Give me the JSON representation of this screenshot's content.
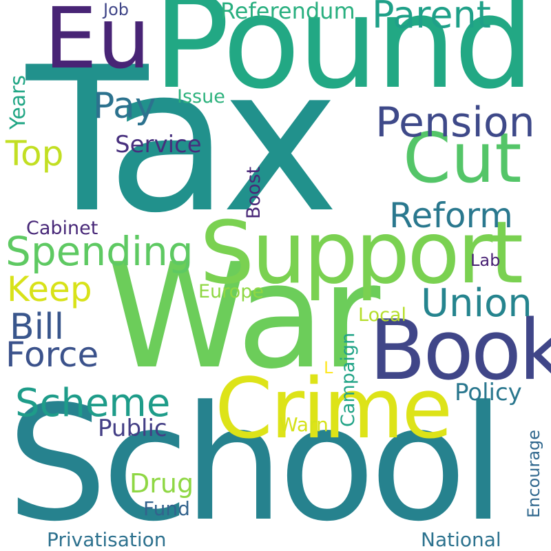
{
  "words": {
    "tax": {
      "text": "Tax",
      "color": "#21918c"
    },
    "school": {
      "text": "School",
      "color": "#26828e"
    },
    "war": {
      "text": "War",
      "color": "#6ccd5a"
    },
    "pound": {
      "text": "Pound",
      "color": "#22a884"
    },
    "support": {
      "text": "Support",
      "color": "#7ad151"
    },
    "crime": {
      "text": "Crime",
      "color": "#dde318"
    },
    "book": {
      "text": "Book",
      "color": "#404688"
    },
    "eu": {
      "text": "Eu",
      "color": "#482475"
    },
    "cut": {
      "text": "Cut",
      "color": "#54c568"
    },
    "pension": {
      "text": "Pension",
      "color": "#3e4989"
    },
    "parent": {
      "text": "Parent",
      "color": "#1fa088"
    },
    "union": {
      "text": "Union",
      "color": "#25848e"
    },
    "spending": {
      "text": "Spending",
      "color": "#5ec962"
    },
    "scheme": {
      "text": "Scheme",
      "color": "#1e9c89"
    },
    "reform": {
      "text": "Reform",
      "color": "#2a788e"
    },
    "force": {
      "text": "Force",
      "color": "#3b528b"
    },
    "bill": {
      "text": "Bill",
      "color": "#39568c"
    },
    "keep": {
      "text": "Keep",
      "color": "#d8e219"
    },
    "pay": {
      "text": "Pay",
      "color": "#2c728e"
    },
    "top": {
      "text": "Top",
      "color": "#c2df23"
    },
    "referendum": {
      "text": "Referendum",
      "color": "#29af7f"
    },
    "public": {
      "text": "Public",
      "color": "#433e85"
    },
    "policy": {
      "text": "Policy",
      "color": "#2a778e"
    },
    "service": {
      "text": "Service",
      "color": "#472f7d"
    },
    "privatisation": {
      "text": "Privatisation",
      "color": "#2d718e"
    },
    "national": {
      "text": "National",
      "color": "#2c728e"
    },
    "drug": {
      "text": "Drug",
      "color": "#8fd744"
    },
    "cabinet": {
      "text": "Cabinet",
      "color": "#482878"
    },
    "job": {
      "text": "Job",
      "color": "#404688"
    },
    "europe": {
      "text": "Europe",
      "color": "#8fd744"
    },
    "local": {
      "text": "Local",
      "color": "#b5de2b"
    },
    "lab": {
      "text": "Lab",
      "color": "#482173"
    },
    "issue": {
      "text": "Issue",
      "color": "#2db27d"
    },
    "warn": {
      "text": "Warn",
      "color": "#d5e21a"
    },
    "fund": {
      "text": "Fund",
      "color": "#33638d"
    },
    "years": {
      "text": "Years",
      "color": "#21a685"
    },
    "boost": {
      "text": "Boost",
      "color": "#482677"
    },
    "campaign": {
      "text": "Campaign",
      "color": "#20a386"
    },
    "encourage": {
      "text": "Encourage",
      "color": "#31688e"
    },
    "l": {
      "text": "L",
      "color": "#fde725"
    }
  }
}
